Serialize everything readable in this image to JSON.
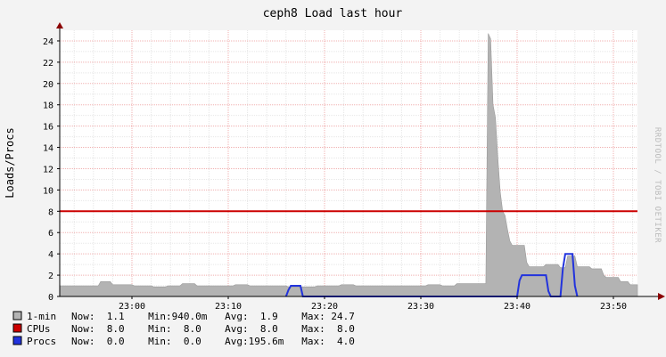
{
  "chart_data": {
    "type": "area",
    "title": "ceph8 Load last hour",
    "ylabel": "Loads/Procs",
    "watermark": "RRDTOOL / TOBI OETIKER",
    "ylim": [
      0,
      25
    ],
    "xlim": [
      "22:52:30",
      "23:52:30"
    ],
    "ytick_labels": [
      "0",
      "2",
      "4",
      "6",
      "8",
      "10",
      "12",
      "14",
      "16",
      "18",
      "20",
      "22",
      "24"
    ],
    "xtick_labels": [
      "23:00",
      "23:10",
      "23:20",
      "23:30",
      "23:40",
      "23:50"
    ],
    "grid": true,
    "colors": {
      "load": "#b3b3b3",
      "cpus": "#cc0000",
      "procs": "#2233dd"
    },
    "series": [
      {
        "name": "1-min",
        "type": "area",
        "points": [
          [
            "22:52:30",
            1.0
          ],
          [
            "22:56:30",
            1.0
          ],
          [
            "22:56:45",
            1.4
          ],
          [
            "22:57:45",
            1.4
          ],
          [
            "22:58:00",
            1.1
          ],
          [
            "23:00:00",
            1.1
          ],
          [
            "23:00:15",
            1.0
          ],
          [
            "23:02:00",
            1.0
          ],
          [
            "23:02:15",
            0.9
          ],
          [
            "23:03:30",
            0.9
          ],
          [
            "23:03:45",
            1.0
          ],
          [
            "23:05:00",
            1.0
          ],
          [
            "23:05:15",
            1.2
          ],
          [
            "23:06:30",
            1.2
          ],
          [
            "23:06:45",
            1.0
          ],
          [
            "23:10:30",
            1.0
          ],
          [
            "23:10:45",
            1.1
          ],
          [
            "23:12:00",
            1.1
          ],
          [
            "23:12:15",
            1.0
          ],
          [
            "23:16:00",
            1.0
          ],
          [
            "23:16:15",
            0.9
          ],
          [
            "23:19:00",
            0.9
          ],
          [
            "23:19:15",
            1.0
          ],
          [
            "23:20:00",
            1.0
          ],
          [
            "23:20:15",
            1.0
          ],
          [
            "23:21:30",
            1.0
          ],
          [
            "23:21:45",
            1.1
          ],
          [
            "23:23:00",
            1.1
          ],
          [
            "23:23:15",
            1.0
          ],
          [
            "23:30:30",
            1.0
          ],
          [
            "23:30:45",
            1.1
          ],
          [
            "23:32:00",
            1.1
          ],
          [
            "23:32:15",
            1.0
          ],
          [
            "23:33:30",
            1.0
          ],
          [
            "23:33:45",
            1.2
          ],
          [
            "23:36:45",
            1.2
          ],
          [
            "23:37:00",
            24.7
          ],
          [
            "23:37:15",
            24.2
          ],
          [
            "23:37:30",
            18.0
          ],
          [
            "23:37:45",
            16.8
          ],
          [
            "23:38:00",
            13.0
          ],
          [
            "23:38:15",
            9.8
          ],
          [
            "23:38:30",
            8.0
          ],
          [
            "23:38:45",
            7.6
          ],
          [
            "23:39:00",
            6.3
          ],
          [
            "23:39:15",
            5.2
          ],
          [
            "23:39:30",
            4.8
          ],
          [
            "23:40:45",
            4.8
          ],
          [
            "23:41:00",
            3.2
          ],
          [
            "23:41:15",
            2.8
          ],
          [
            "23:42:45",
            2.8
          ],
          [
            "23:43:00",
            3.0
          ],
          [
            "23:44:15",
            3.0
          ],
          [
            "23:44:30",
            2.7
          ],
          [
            "23:45:00",
            2.7
          ],
          [
            "23:45:15",
            3.8
          ],
          [
            "23:46:00",
            3.8
          ],
          [
            "23:46:15",
            2.8
          ],
          [
            "23:47:30",
            2.8
          ],
          [
            "23:47:45",
            2.6
          ],
          [
            "23:48:45",
            2.6
          ],
          [
            "23:49:00",
            2.0
          ],
          [
            "23:49:15",
            1.8
          ],
          [
            "23:50:30",
            1.8
          ],
          [
            "23:50:45",
            1.4
          ],
          [
            "23:51:30",
            1.4
          ],
          [
            "23:51:45",
            1.1
          ],
          [
            "23:52:30",
            1.1
          ]
        ]
      },
      {
        "name": "CPUs",
        "type": "line",
        "points": [
          [
            "22:52:30",
            8.0
          ],
          [
            "23:52:30",
            8.0
          ]
        ]
      },
      {
        "name": "Procs",
        "type": "line",
        "points": [
          [
            "23:16:00",
            0.0
          ],
          [
            "23:16:15",
            0.6
          ],
          [
            "23:16:30",
            1.0
          ],
          [
            "23:17:30",
            1.0
          ],
          [
            "23:17:45",
            0.0
          ],
          [
            "23:40:00",
            0.0
          ],
          [
            "23:40:15",
            1.5
          ],
          [
            "23:40:30",
            2.0
          ],
          [
            "23:43:00",
            2.0
          ],
          [
            "23:43:15",
            0.5
          ],
          [
            "23:43:30",
            0.0
          ],
          [
            "23:44:30",
            0.0
          ],
          [
            "23:44:45",
            2.6
          ],
          [
            "23:45:00",
            4.0
          ],
          [
            "23:45:45",
            4.0
          ],
          [
            "23:46:00",
            1.0
          ],
          [
            "23:46:15",
            0.0
          ]
        ]
      }
    ],
    "legend": {
      "placement": "bottom",
      "rows": [
        {
          "name": "1-min",
          "color_key": "load",
          "text": "Now:  1.1    Min:940.0m   Avg:  1.9    Max: 24.7"
        },
        {
          "name": "CPUs",
          "color_key": "cpus",
          "text": "Now:  8.0    Min:  8.0    Avg:  8.0    Max:  8.0"
        },
        {
          "name": "Procs",
          "color_key": "procs",
          "text": "Now:  0.0    Min:  0.0    Avg:195.6m   Max:  4.0"
        }
      ]
    }
  }
}
